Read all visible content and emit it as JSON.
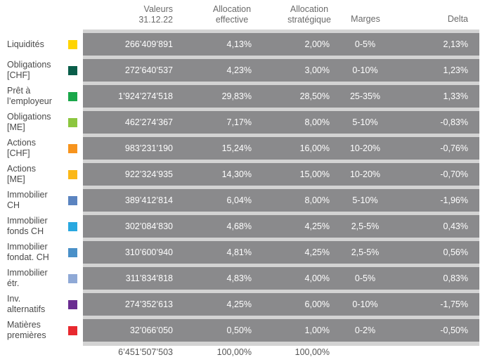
{
  "headers": {
    "values": [
      "Valeurs",
      "31.12.22"
    ],
    "effective": [
      "Allocation",
      "effective"
    ],
    "strategic": [
      "Allocation",
      "stratégique"
    ],
    "margins": "Marges",
    "delta": "Delta"
  },
  "rows": [
    {
      "label": [
        "Liquidités"
      ],
      "color": "#ffd400",
      "value": "266’409’891",
      "effective": "4,13%",
      "strategic": "2,00%",
      "margins": "0-5%",
      "delta": "2,13%"
    },
    {
      "label": [
        "Obligations",
        "[CHF]"
      ],
      "color": "#0a5e4a",
      "value": "272’640’537",
      "effective": "4,23%",
      "strategic": "3,00%",
      "margins": "0-10%",
      "delta": "1,23%"
    },
    {
      "label": [
        "Prêt à",
        "l’employeur"
      ],
      "color": "#1aa74a",
      "value": "1’924’274’518",
      "effective": "29,83%",
      "strategic": "28,50%",
      "margins": "25-35%",
      "delta": "1,33%"
    },
    {
      "label": [
        "Obligations",
        "[ME]"
      ],
      "color": "#8cc63f",
      "value": "462’274’367",
      "effective": "7,17%",
      "strategic": "8,00%",
      "margins": "5-10%",
      "delta": "-0,83%"
    },
    {
      "label": [
        "Actions",
        "[CHF]"
      ],
      "color": "#f7941d",
      "value": "983’231’190",
      "effective": "15,24%",
      "strategic": "16,00%",
      "margins": "10-20%",
      "delta": "-0,76%"
    },
    {
      "label": [
        "Actions",
        "[ME]"
      ],
      "color": "#fbb817",
      "value": "922’324’935",
      "effective": "14,30%",
      "strategic": "15,00%",
      "margins": "10-20%",
      "delta": "-0,70%"
    },
    {
      "label": [
        "Immobilier",
        "CH"
      ],
      "color": "#5b84c0",
      "value": "389’412’814",
      "effective": "6,04%",
      "strategic": "8,00%",
      "margins": "5-10%",
      "delta": "-1,96%"
    },
    {
      "label": [
        "Immobilier",
        "fonds CH"
      ],
      "color": "#29a8e0",
      "value": "302’084’830",
      "effective": "4,68%",
      "strategic": "4,25%",
      "margins": "2,5-5%",
      "delta": "0,43%"
    },
    {
      "label": [
        "Immobilier",
        "fondat. CH"
      ],
      "color": "#4a90c8",
      "value": "310’600’940",
      "effective": "4,81%",
      "strategic": "4,25%",
      "margins": "2,5-5%",
      "delta": "0,56%"
    },
    {
      "label": [
        "Immobilier",
        "étr."
      ],
      "color": "#8fa9d6",
      "value": "311’834’818",
      "effective": "4,83%",
      "strategic": "4,00%",
      "margins": "0-5%",
      "delta": "0,83%"
    },
    {
      "label": [
        "Inv.",
        "alternatifs"
      ],
      "color": "#6a2c91",
      "value": "274’352’613",
      "effective": "4,25%",
      "strategic": "6,00%",
      "margins": "0-10%",
      "delta": "-1,75%"
    },
    {
      "label": [
        "Matières",
        "premières"
      ],
      "color": "#e8292f",
      "value": "32’066’050",
      "effective": "0,50%",
      "strategic": "1,00%",
      "margins": "0-2%",
      "delta": "-0,50%"
    }
  ],
  "totals": {
    "value": "6’451’507’503",
    "effective": "100,00%",
    "strategic": "100,00%"
  }
}
